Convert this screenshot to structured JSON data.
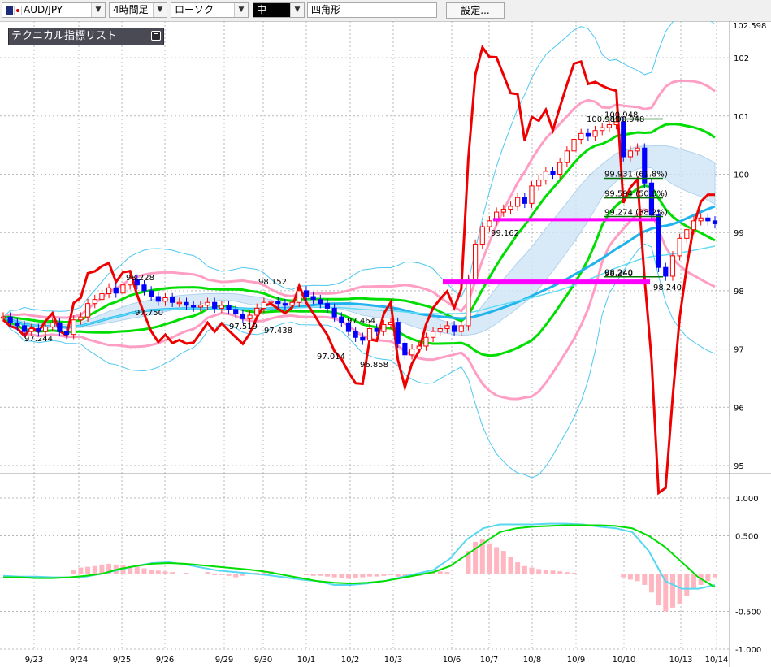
{
  "toolbar": {
    "symbol": "AUD/JPY",
    "timeframe": "4時間足",
    "chart_style": "ローソク",
    "line_width": "中",
    "shape": "四角形",
    "settings_label": "設定..."
  },
  "indicator_panel": {
    "title": "テクニカル指標リスト"
  },
  "colors": {
    "candle_up": "#ff0000",
    "candle_down": "#0000ff",
    "bollinger_sigma1": "#ff9ec4",
    "bollinger_sigma3": "#4cc8f0",
    "moving_averages": "#00dd00",
    "rsi_line": "#ee0000",
    "support_resistance": "#ff00ff",
    "fibonacci": "#007000",
    "macd_histogram": "#ffb6c1",
    "macd_line": "#55d8f0",
    "signal_line": "#00dd00",
    "grid": "#b8b8b8"
  },
  "chart_data": [
    {
      "type": "candlestick",
      "panel": "price",
      "ylim": [
        94.6,
        102.6
      ],
      "y_ticks": [
        95,
        96,
        97,
        98,
        99,
        100,
        101,
        102
      ],
      "y_top_label": "102.598",
      "x_tick_labels": [
        "9/23",
        "9/24",
        "9/25",
        "9/26",
        "9/29",
        "9/30",
        "10/1",
        "10/2",
        "10/3",
        "10/6",
        "10/7",
        "10/8",
        "10/9",
        "10/10",
        "10/13",
        "10/14"
      ],
      "grid": true,
      "closes": [
        97.55,
        97.45,
        97.4,
        97.3,
        97.35,
        97.3,
        97.38,
        97.45,
        97.3,
        97.25,
        97.5,
        97.55,
        97.78,
        97.85,
        97.95,
        98.05,
        97.96,
        98.1,
        98.2,
        98.1,
        98.0,
        97.9,
        97.82,
        97.88,
        97.8,
        97.8,
        97.75,
        97.72,
        97.75,
        97.8,
        97.7,
        97.75,
        97.68,
        97.6,
        97.52,
        97.58,
        97.7,
        97.8,
        97.82,
        97.78,
        97.75,
        97.8,
        98.0,
        97.9,
        97.85,
        97.78,
        97.7,
        97.55,
        97.45,
        97.3,
        97.2,
        97.15,
        97.35,
        97.3,
        97.42,
        97.46,
        97.1,
        96.9,
        97.0,
        97.05,
        97.2,
        97.3,
        97.35,
        97.4,
        97.3,
        97.4,
        98.2,
        98.8,
        99.1,
        99.2,
        99.35,
        99.4,
        99.45,
        99.6,
        99.5,
        99.8,
        99.9,
        100.05,
        100.0,
        100.2,
        100.4,
        100.6,
        100.7,
        100.65,
        100.75,
        100.8,
        100.85,
        100.9,
        100.3,
        100.4,
        100.45,
        99.85,
        99.3,
        98.4,
        98.25,
        98.6,
        98.9,
        99.05,
        99.2,
        99.25,
        99.2,
        99.15
      ],
      "shown_labels": [
        {
          "text": "97.244"
        },
        {
          "text": "98.228"
        },
        {
          "text": "97.750"
        },
        {
          "text": "97.519"
        },
        {
          "text": "98.152"
        },
        {
          "text": "97.438"
        },
        {
          "text": "97.014"
        },
        {
          "text": "97.464"
        },
        {
          "text": "96.858"
        },
        {
          "text": "99.162"
        },
        {
          "text": "100.989"
        },
        {
          "text": "100.948"
        },
        {
          "text": "98.240"
        },
        {
          "text": "98.240"
        }
      ],
      "series": [
        {
          "name": "bollinger_upper_1",
          "color": "#ff9ec4"
        },
        {
          "name": "bollinger_lower_1",
          "color": "#ff9ec4"
        },
        {
          "name": "bollinger_upper_3",
          "color": "#4cc8f0"
        },
        {
          "name": "bollinger_lower_3",
          "color": "#4cc8f0"
        },
        {
          "name": "moving_averages",
          "color": "#00dd00"
        },
        {
          "name": "rsi_overlay",
          "color": "#ee0000"
        }
      ],
      "horizontal_lines": [
        {
          "level": 98.15,
          "color": "#ff00ff"
        },
        {
          "level": 99.22,
          "color": "#ff00ff"
        }
      ],
      "fibonacci_levels": [
        {
          "label": "100.948",
          "value": 100.948
        },
        {
          "label": "99.931 (61.8%)",
          "value": 99.931
        },
        {
          "label": "99.594 (50.0%)",
          "value": 99.594
        },
        {
          "label": "99.274 (38.2%)",
          "value": 99.274
        },
        {
          "label": "98.240",
          "value": 98.24
        }
      ]
    },
    {
      "type": "bar",
      "panel": "macd",
      "ylim": [
        -1.0,
        1.0
      ],
      "y_ticks": [
        "1.000",
        "0.500",
        "-0.500",
        "-1.000"
      ],
      "grid": true,
      "histogram": [
        0.0,
        0.0,
        0.0,
        0.0,
        0.0,
        0.0,
        0.0,
        0.0,
        0.0,
        0.0,
        0.05,
        0.08,
        0.09,
        0.1,
        0.12,
        0.13,
        0.12,
        0.11,
        0.1,
        0.09,
        0.07,
        0.05,
        0.04,
        0.03,
        0.02,
        0.0,
        0.01,
        0.0,
        0.0,
        0.02,
        -0.02,
        -0.02,
        -0.03,
        -0.05,
        -0.03,
        0.0,
        0.01,
        0.02,
        0.03,
        0.0,
        0.0,
        0.0,
        0.0,
        -0.02,
        -0.03,
        -0.03,
        -0.04,
        -0.05,
        -0.06,
        -0.07,
        -0.06,
        -0.05,
        -0.04,
        -0.04,
        -0.03,
        -0.02,
        -0.04,
        -0.05,
        -0.04,
        -0.03,
        0.0,
        0.02,
        0.03,
        0.02,
        0.0,
        0.0,
        0.3,
        0.42,
        0.45,
        0.4,
        0.35,
        0.3,
        0.22,
        0.15,
        0.1,
        0.08,
        0.06,
        0.05,
        0.04,
        0.03,
        0.02,
        0.01,
        0.0,
        0.0,
        0.0,
        0.0,
        0.0,
        0.0,
        -0.05,
        -0.08,
        -0.1,
        -0.15,
        -0.25,
        -0.42,
        -0.5,
        -0.45,
        -0.4,
        -0.3,
        -0.2,
        -0.15,
        -0.1,
        -0.05
      ],
      "series": [
        {
          "name": "macd",
          "color": "#55d8f0",
          "values": [
            -0.03,
            -0.04,
            -0.04,
            -0.05,
            -0.05,
            -0.04,
            0.0,
            0.05,
            0.1,
            0.14,
            0.15,
            0.12,
            0.08,
            0.04,
            0.02,
            0.0,
            -0.02,
            -0.05,
            -0.08,
            -0.1,
            -0.15,
            -0.15,
            -0.13,
            -0.1,
            -0.05,
            0.0,
            0.05,
            0.2,
            0.45,
            0.6,
            0.65,
            0.65,
            0.65,
            0.66,
            0.66,
            0.65,
            0.62,
            0.6,
            0.55,
            0.3,
            -0.1,
            -0.2,
            -0.2,
            -0.15
          ]
        },
        {
          "name": "signal",
          "color": "#00dd00",
          "values": [
            -0.05,
            -0.05,
            -0.06,
            -0.06,
            -0.05,
            -0.03,
            0.0,
            0.06,
            0.1,
            0.13,
            0.14,
            0.13,
            0.11,
            0.09,
            0.07,
            0.05,
            0.02,
            -0.02,
            -0.06,
            -0.1,
            -0.12,
            -0.13,
            -0.12,
            -0.1,
            -0.06,
            -0.02,
            0.02,
            0.1,
            0.25,
            0.4,
            0.55,
            0.6,
            0.62,
            0.63,
            0.64,
            0.64,
            0.64,
            0.63,
            0.6,
            0.5,
            0.35,
            0.15,
            -0.05,
            -0.18
          ]
        }
      ]
    }
  ]
}
